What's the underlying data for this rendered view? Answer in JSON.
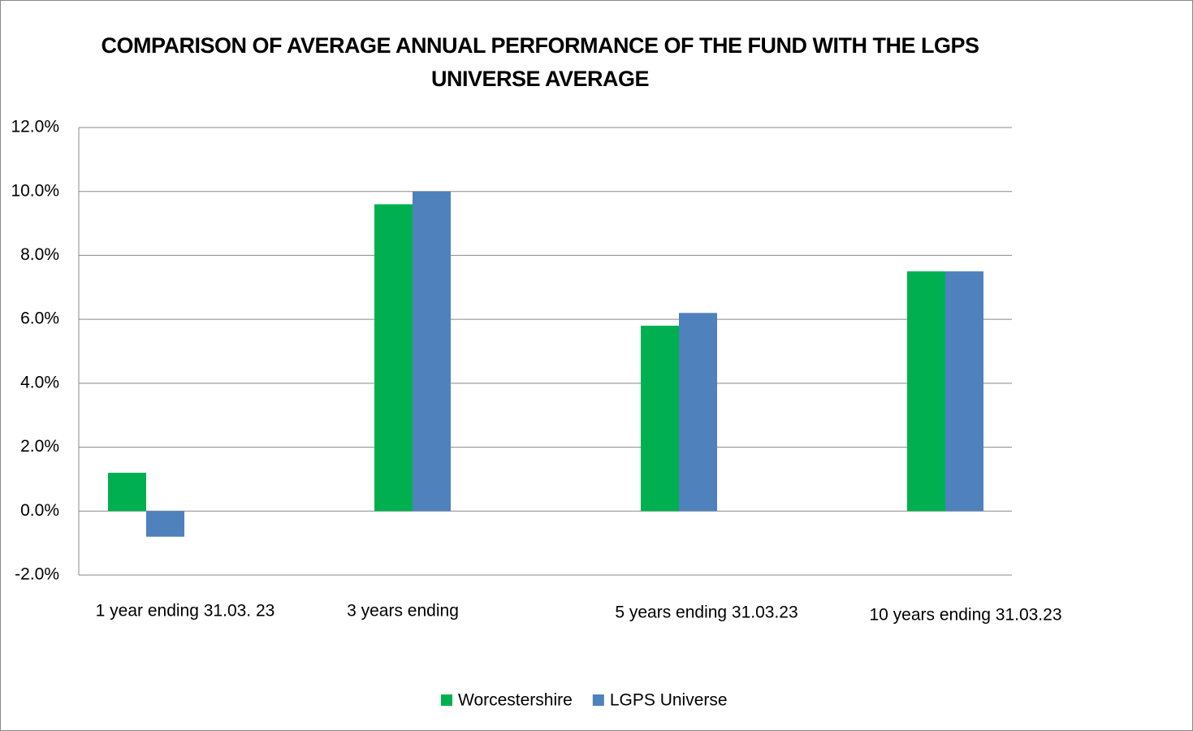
{
  "chart_data": {
    "type": "bar",
    "title": "COMPARISON OF AVERAGE ANNUAL PERFORMANCE OF THE FUND WITH THE LGPS UNIVERSE AVERAGE",
    "categories": [
      "1 year ending 31.03. 23",
      "3 years ending",
      "5 years ending 31.03.23",
      "10 years ending 31.03.23"
    ],
    "series": [
      {
        "name": "Worcestershire",
        "color": "#00b050",
        "values": [
          1.2,
          9.6,
          5.8,
          7.5
        ]
      },
      {
        "name": "LGPS Universe",
        "color": "#4f81bd",
        "values": [
          -0.8,
          10.0,
          6.2,
          7.5
        ]
      }
    ],
    "ylim": [
      -2,
      12
    ],
    "yticks": [
      {
        "value": -2,
        "label": "-2.0%"
      },
      {
        "value": 0,
        "label": "0.0%"
      },
      {
        "value": 2,
        "label": "2.0%"
      },
      {
        "value": 4,
        "label": "4.0%"
      },
      {
        "value": 6,
        "label": "6.0%"
      },
      {
        "value": 8,
        "label": "8.0%"
      },
      {
        "value": 10,
        "label": "10.0%"
      },
      {
        "value": 12,
        "label": "12.0%"
      }
    ],
    "grid": true,
    "legend": "bottom"
  }
}
